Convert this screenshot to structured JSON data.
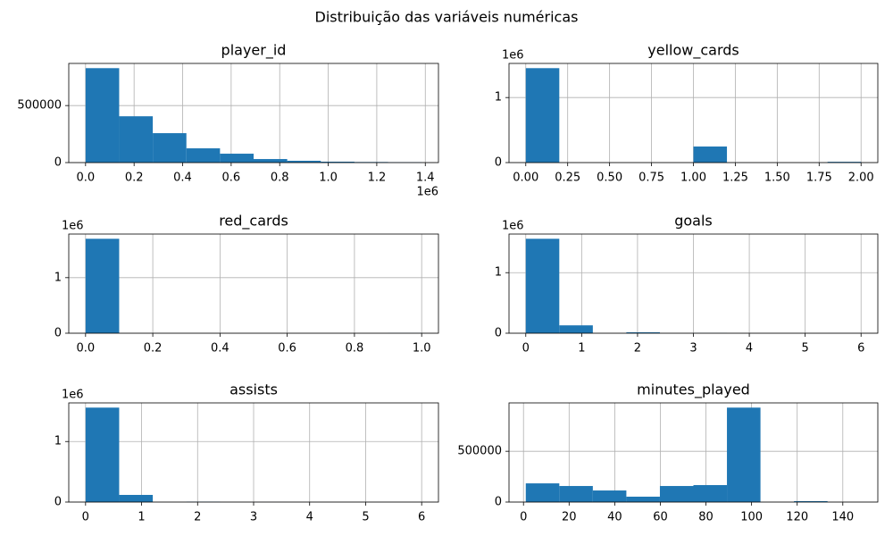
{
  "title": "Distribuição das variáveis numéricas",
  "chart_data": [
    {
      "type": "histogram",
      "title": "player_id",
      "color": "#1f77b4",
      "grid": true,
      "bins": [
        0,
        138500,
        277000,
        415500,
        554000,
        692500,
        831000,
        969500,
        1108000,
        1246500,
        1385000
      ],
      "values": [
        828000,
        406000,
        258000,
        125000,
        78000,
        31000,
        16000,
        8000,
        5000,
        3000
      ],
      "xlim": [
        -69250,
        1454250
      ],
      "ylim": [
        0,
        869400
      ],
      "xticks": [
        {
          "value": 0,
          "label": "0.0"
        },
        {
          "value": 200000,
          "label": "0.2"
        },
        {
          "value": 400000,
          "label": "0.4"
        },
        {
          "value": 600000,
          "label": "0.6"
        },
        {
          "value": 800000,
          "label": "0.8"
        },
        {
          "value": 1000000,
          "label": "1.0"
        },
        {
          "value": 1200000,
          "label": "1.2"
        },
        {
          "value": 1400000,
          "label": "1.4"
        }
      ],
      "x_offset_text": "1e6",
      "yticks": [
        0,
        500000
      ]
    },
    {
      "type": "histogram",
      "title": "yellow_cards",
      "color": "#1f77b4",
      "grid": true,
      "bins": [
        0,
        0.2,
        0.4,
        0.6,
        0.8,
        1,
        1.2,
        1.4,
        1.6,
        1.8,
        2
      ],
      "values": [
        1452000,
        0,
        0,
        0,
        0,
        247000,
        0,
        0,
        0,
        12000
      ],
      "xlim": [
        -0.1,
        2.1
      ],
      "ylim": [
        0,
        1524600
      ],
      "xticks": [
        {
          "value": 0,
          "label": "0.00"
        },
        0.25,
        {
          "value": 0.5,
          "label": "0.50"
        },
        0.75,
        {
          "value": 1,
          "label": "1.00"
        },
        1.25,
        {
          "value": 1.5,
          "label": "1.50"
        },
        1.75,
        {
          "value": 2,
          "label": "2.00"
        }
      ],
      "yticks": [
        0,
        {
          "value": 1000000,
          "label": "1"
        }
      ],
      "y_offset_text": "1e6"
    },
    {
      "type": "histogram",
      "title": "red_cards",
      "color": "#1f77b4",
      "grid": true,
      "bins": [
        0,
        0.1,
        0.2,
        0.3,
        0.4,
        0.5,
        0.6,
        0.7,
        0.8,
        0.9,
        1
      ],
      "values": [
        1700000,
        0,
        0,
        0,
        0,
        0,
        0,
        0,
        0,
        2000
      ],
      "xlim": [
        -0.05,
        1.05
      ],
      "ylim": [
        0,
        1785000
      ],
      "xticks": [
        {
          "value": 0,
          "label": "0.0"
        },
        0.2,
        0.4,
        0.6,
        0.8,
        {
          "value": 1,
          "label": "1.0"
        }
      ],
      "yticks": [
        0,
        {
          "value": 1000000,
          "label": "1"
        }
      ],
      "y_offset_text": "1e6"
    },
    {
      "type": "histogram",
      "title": "goals",
      "color": "#1f77b4",
      "grid": true,
      "bins": [
        0,
        0.6,
        1.2,
        1.8,
        2.4,
        3,
        3.6,
        4.2,
        4.8,
        5.4,
        6
      ],
      "values": [
        1560000,
        130000,
        0,
        15000,
        0,
        2000,
        0,
        0,
        0,
        500
      ],
      "xlim": [
        -0.3,
        6.3
      ],
      "ylim": [
        0,
        1638000
      ],
      "xticks": [
        0,
        1,
        2,
        3,
        4,
        5,
        6
      ],
      "yticks": [
        0,
        {
          "value": 1000000,
          "label": "1"
        }
      ],
      "y_offset_text": "1e6"
    },
    {
      "type": "histogram",
      "title": "assists",
      "color": "#1f77b4",
      "grid": true,
      "bins": [
        0,
        0.6,
        1.2,
        1.8,
        2.4,
        3,
        3.6,
        4.2,
        4.8,
        5.4,
        6
      ],
      "values": [
        1560000,
        118000,
        0,
        5000,
        0,
        500,
        0,
        0,
        0,
        100
      ],
      "xlim": [
        -0.3,
        6.3
      ],
      "ylim": [
        0,
        1638000
      ],
      "xticks": [
        0,
        1,
        2,
        3,
        4,
        5,
        6
      ],
      "yticks": [
        0,
        {
          "value": 1000000,
          "label": "1"
        }
      ],
      "y_offset_text": "1e6"
    },
    {
      "type": "histogram",
      "title": "minutes_played",
      "color": "#1f77b4",
      "grid": true,
      "bins": [
        1,
        15.7,
        30.4,
        45.1,
        59.8,
        74.5,
        89.2,
        103.9,
        118.6,
        133.3,
        148
      ],
      "values": [
        184000,
        158000,
        114000,
        53000,
        158000,
        167000,
        930000,
        0,
        9000,
        0
      ],
      "xlim": [
        -6.35,
        155.35
      ],
      "ylim": [
        0,
        976500
      ],
      "xticks": [
        0,
        20,
        40,
        60,
        80,
        100,
        120,
        140
      ],
      "yticks": [
        0,
        500000
      ]
    }
  ]
}
